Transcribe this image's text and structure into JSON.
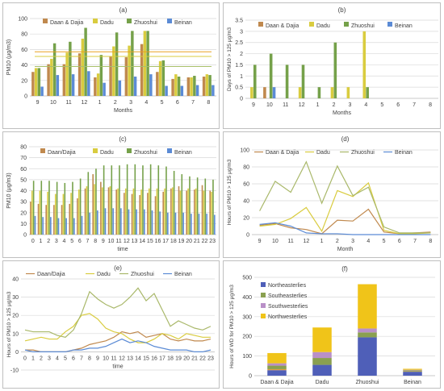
{
  "chart_data": [
    {
      "id": "a",
      "type": "bar",
      "title": "(a)",
      "xlabel": "Months",
      "ylabel": "PM10 (μg/m3)",
      "ylim": [
        0,
        100
      ],
      "yticks": [
        0,
        20,
        40,
        60,
        80,
        100
      ],
      "categories": [
        "9",
        "10",
        "11",
        "12",
        "1",
        "2",
        "3",
        "4",
        "5",
        "6",
        "7",
        "8"
      ],
      "legend_position": "top",
      "series": [
        {
          "name": "Daan & Dajia",
          "color": "#c0894e",
          "values": [
            31,
            41,
            41,
            55,
            24,
            51,
            50,
            67,
            31,
            22,
            24,
            25
          ]
        },
        {
          "name": "Dadu",
          "color": "#d9cc3f",
          "values": [
            36,
            48,
            56,
            74,
            29,
            64,
            65,
            84,
            45,
            28,
            24,
            28
          ]
        },
        {
          "name": "Zhuoshui",
          "color": "#75a14a",
          "values": [
            36,
            68,
            70,
            88,
            53,
            82,
            84,
            84,
            46,
            25,
            26,
            27
          ]
        },
        {
          "name": "Beinan",
          "color": "#5b8bd5",
          "values": [
            12,
            27,
            28,
            32,
            17,
            20,
            25,
            28,
            13,
            13,
            14,
            14
          ]
        }
      ],
      "reference_lines": [
        {
          "value": 57,
          "color": "#e8a020"
        },
        {
          "value": 51,
          "color": "#d9cc3f"
        },
        {
          "value": 38,
          "color": "#a9c06a"
        }
      ]
    },
    {
      "id": "b",
      "type": "bar",
      "title": "(b)",
      "xlabel": "Months",
      "ylabel": "Days of PM10 > 125 μg/m3",
      "ylim": [
        0,
        3.5
      ],
      "yticks": [
        0,
        0.5,
        1,
        1.5,
        2,
        2.5,
        3,
        3.5
      ],
      "categories": [
        "9",
        "10",
        "11",
        "12",
        "1",
        "2",
        "3",
        "4",
        "5",
        "6",
        "7",
        "8"
      ],
      "legend_position": "top",
      "series": [
        {
          "name": "Daan & Dajia",
          "color": "#c0894e",
          "values": [
            0,
            0.5,
            0,
            0,
            0,
            0,
            0,
            0,
            0,
            0,
            0,
            0
          ]
        },
        {
          "name": "Dadu",
          "color": "#d9cc3f",
          "values": [
            0.5,
            0,
            0,
            0.5,
            0,
            0.5,
            0.5,
            3,
            0,
            0,
            0,
            0
          ]
        },
        {
          "name": "Zhuoshui",
          "color": "#75a14a",
          "values": [
            1.5,
            2,
            1.5,
            1.5,
            0.5,
            2.5,
            0,
            0.5,
            0,
            0,
            0,
            0
          ]
        },
        {
          "name": "Beinan",
          "color": "#5b8bd5",
          "values": [
            0,
            0.5,
            0,
            0,
            0,
            0,
            0,
            0,
            0,
            0,
            0,
            0
          ]
        }
      ]
    },
    {
      "id": "c",
      "type": "bar",
      "title": "(c)",
      "xlabel": "time",
      "ylabel": "PM10 (μg/m3)",
      "ylim": [
        0,
        80
      ],
      "yticks": [
        0,
        10,
        20,
        30,
        40,
        50,
        60,
        70,
        80
      ],
      "categories": [
        "0",
        "1",
        "2",
        "3",
        "4",
        "5",
        "6",
        "7",
        "8",
        "9",
        "10",
        "11",
        "12",
        "13",
        "14",
        "15",
        "16",
        "17",
        "18",
        "19",
        "20",
        "21",
        "22",
        "23"
      ],
      "legend_position": "top",
      "series": [
        {
          "name": "Daan/Dajia",
          "color": "#c0894e",
          "values": [
            30,
            28,
            27,
            27,
            27,
            28,
            33,
            42,
            55,
            48,
            43,
            41,
            38,
            37,
            36,
            38,
            35,
            39,
            42,
            44,
            40,
            41,
            45,
            40
          ]
        },
        {
          "name": "Dadu",
          "color": "#d9cc3f",
          "values": [
            40,
            40,
            39,
            37,
            37,
            38,
            41,
            44,
            46,
            43,
            44,
            42,
            42,
            42,
            41,
            42,
            42,
            42,
            43,
            40,
            42,
            42,
            40,
            39
          ]
        },
        {
          "name": "Zhuoshui",
          "color": "#75a14a",
          "values": [
            49,
            49,
            49,
            48,
            47,
            48,
            51,
            57,
            60,
            63,
            63,
            63,
            64,
            64,
            63,
            64,
            63,
            62,
            58,
            55,
            53,
            52,
            51,
            50
          ]
        },
        {
          "name": "Beinan",
          "color": "#5b8bd5",
          "values": [
            17,
            16,
            16,
            15,
            15,
            15,
            17,
            20,
            22,
            24,
            24,
            24,
            23,
            23,
            23,
            22,
            21,
            20,
            20,
            20,
            19,
            19,
            19,
            18
          ]
        }
      ]
    },
    {
      "id": "d",
      "type": "line",
      "title": "(d)",
      "xlabel": "Month",
      "ylabel": "Hours of PM10 > 125 μg/m3",
      "ylim": [
        0,
        100
      ],
      "yticks": [
        0,
        20,
        40,
        60,
        80,
        100
      ],
      "categories": [
        "9",
        "10",
        "11",
        "12",
        "1",
        "2",
        "3",
        "4",
        "5",
        "6",
        "7",
        "8"
      ],
      "legend_position": "top",
      "series": [
        {
          "name": "Daan & Dajia",
          "color": "#c0894e",
          "values": [
            11,
            13,
            8,
            6,
            1,
            17,
            16,
            30,
            3,
            1,
            2,
            3
          ]
        },
        {
          "name": "Dadu",
          "color": "#d9cc3f",
          "values": [
            10,
            12,
            19,
            32,
            4,
            52,
            45,
            61,
            5,
            1,
            1,
            2
          ]
        },
        {
          "name": "Zhuoshui",
          "color": "#a9b86a",
          "values": [
            28,
            63,
            50,
            86,
            37,
            81,
            46,
            56,
            9,
            2,
            2,
            2
          ]
        },
        {
          "name": "Beinan",
          "color": "#5b8bd5",
          "values": [
            12,
            14,
            10,
            2,
            1,
            1,
            0,
            0,
            0,
            0,
            0,
            0
          ]
        }
      ]
    },
    {
      "id": "e",
      "type": "line",
      "title": "(e)",
      "xlabel": "time",
      "ylabel": "Hours of PM10 > 125 μg/m3",
      "ylim": [
        -10,
        40
      ],
      "yticks": [
        -10,
        0,
        10,
        20,
        30,
        40
      ],
      "categories": [
        "0",
        "1",
        "2",
        "3",
        "4",
        "5",
        "6",
        "7",
        "8",
        "9",
        "10",
        "11",
        "12",
        "13",
        "14",
        "15",
        "16",
        "17",
        "18",
        "19",
        "20",
        "21",
        "22",
        "23"
      ],
      "legend_position": "top",
      "series": [
        {
          "name": "Daan/Dajia",
          "color": "#c0894e",
          "values": [
            1,
            1,
            0,
            0,
            0,
            0,
            1,
            2,
            4,
            5,
            6,
            8,
            11,
            10,
            11,
            8,
            9,
            10,
            7,
            6,
            7,
            6,
            6,
            7
          ]
        },
        {
          "name": "Dadu",
          "color": "#d9cc3f",
          "values": [
            6,
            7,
            8,
            7,
            7,
            11,
            14,
            20,
            21,
            18,
            13,
            11,
            10,
            7,
            5,
            5,
            7,
            10,
            9,
            7,
            10,
            9,
            8,
            8
          ]
        },
        {
          "name": "Zhuoshui",
          "color": "#a9b86a",
          "values": [
            12,
            11,
            11,
            11,
            9,
            8,
            12,
            21,
            33,
            29,
            26,
            24,
            26,
            30,
            35,
            28,
            32,
            23,
            14,
            17,
            15,
            13,
            12,
            14
          ]
        },
        {
          "name": "Beinan",
          "color": "#5b8bd5",
          "values": [
            1,
            0,
            0,
            0,
            0,
            0,
            1,
            1,
            2,
            2,
            3,
            5,
            7,
            5,
            6,
            5,
            3,
            2,
            1,
            1,
            1,
            0,
            0,
            1
          ]
        }
      ]
    },
    {
      "id": "f",
      "type": "bar",
      "stacked": true,
      "title": "(f)",
      "xlabel": "",
      "ylabel": "Hours of WD for PM10 > 125 μg/m3",
      "ylim": [
        0,
        500
      ],
      "yticks": [
        0,
        100,
        200,
        300,
        400,
        500
      ],
      "categories": [
        "Daan & Dajia",
        "Dadu",
        "Zhuoshui",
        "Beinan"
      ],
      "legend_position": "left",
      "series": [
        {
          "name": "Northeasterlies",
          "color": "#4f5fb8",
          "values": [
            28,
            55,
            195,
            20
          ]
        },
        {
          "name": "Southeasterlies",
          "color": "#8aa050",
          "values": [
            18,
            35,
            25,
            5
          ]
        },
        {
          "name": "Southwesterlies",
          "color": "#b990c8",
          "values": [
            12,
            30,
            20,
            3
          ]
        },
        {
          "name": "Northwesterlies",
          "color": "#f0c419",
          "values": [
            52,
            125,
            225,
            5
          ]
        }
      ],
      "extra_segment_color": "#e39b42",
      "extra_segment_values": [
        5,
        0,
        0,
        2
      ]
    }
  ]
}
